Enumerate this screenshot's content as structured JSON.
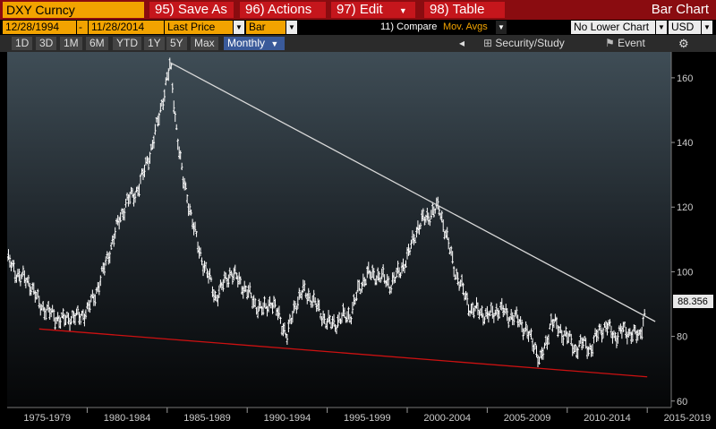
{
  "header": {
    "ticker": "DXY Curncy",
    "actions": [
      {
        "num": "95)",
        "label": "Save As",
        "dropdown": false
      },
      {
        "num": "96)",
        "label": "Actions",
        "dropdown": true
      },
      {
        "num": "97)",
        "label": "Edit",
        "dropdown": true
      },
      {
        "num": "98)",
        "label": "Table",
        "dropdown": false
      }
    ],
    "chart_kind": "Bar Chart"
  },
  "settings": {
    "start_date": "12/28/1994",
    "separator": "-",
    "end_date": "11/28/2014",
    "field": "Last Price",
    "style": "Bar",
    "compare": "11) Compare",
    "mov_avgs": "Mov. Avgs",
    "lower_chart": "No Lower Chart",
    "currency": "USD"
  },
  "periods": [
    "1D",
    "3D",
    "1M",
    "6M",
    "YTD",
    "1Y",
    "5Y",
    "Max"
  ],
  "frequency": "Monthly",
  "tools": {
    "security_study": "Security/Study",
    "event": "Event"
  },
  "colors": {
    "accent_orange": "#f2a300",
    "header_red": "#8a0c10",
    "button_red": "#c5161c",
    "price_bars": "#ffffff",
    "resistance_line": "#d8d8d8",
    "support_line": "#cc1111"
  },
  "chart_data": {
    "type": "bar",
    "title": "",
    "xlabel": "",
    "ylabel": "",
    "frequency": "Monthly",
    "xlim": [
      1975.0,
      2016.5
    ],
    "ylim": [
      58,
      168
    ],
    "y_ticks": [
      60,
      80,
      100,
      120,
      140,
      160
    ],
    "x_tick_labels": [
      "1975-1979",
      "1980-1984",
      "1985-1989",
      "1990-1994",
      "1995-1999",
      "2000-2004",
      "2005-2009",
      "2010-2014",
      "2015-2019"
    ],
    "x_tick_positions": [
      1977.5,
      1982.5,
      1987.5,
      1992.5,
      1997.5,
      2002.5,
      2007.5,
      2012.5,
      2017.5
    ],
    "last_value": "88.356",
    "series": [
      {
        "x": [
          1975.0,
          1975.5,
          1976.0,
          1976.5,
          1977.0,
          1977.5,
          1978.0,
          1978.5,
          1979.0,
          1979.5,
          1980.0,
          1980.5,
          1981.0,
          1981.5,
          1982.0,
          1982.5,
          1983.0,
          1983.5,
          1984.0,
          1984.5,
          1985.0,
          1985.2,
          1985.5,
          1986.0,
          1986.5,
          1987.0,
          1987.5,
          1988.0,
          1988.5,
          1989.0,
          1989.5,
          1990.0,
          1990.5,
          1991.0,
          1991.5,
          1992.0,
          1992.5,
          1993.0,
          1993.5,
          1994.0,
          1994.5,
          1995.0,
          1995.5,
          1996.0,
          1996.5,
          1997.0,
          1997.5,
          1998.0,
          1998.5,
          1999.0,
          1999.5,
          2000.0,
          2000.5,
          2001.0,
          2001.5,
          2002.0,
          2002.5,
          2003.0,
          2003.5,
          2004.0,
          2004.5,
          2005.0,
          2005.5,
          2006.0,
          2006.5,
          2007.0,
          2007.5,
          2008.0,
          2008.3,
          2008.7,
          2009.0,
          2009.5,
          2010.0,
          2010.5,
          2011.0,
          2011.5,
          2012.0,
          2012.5,
          2013.0,
          2013.5,
          2014.0,
          2014.5,
          2014.9
        ],
        "values": [
          104,
          100,
          98,
          96,
          90,
          88,
          86,
          85,
          86,
          86,
          88,
          93,
          100,
          108,
          116,
          122,
          124,
          130,
          138,
          148,
          160,
          164,
          148,
          128,
          118,
          106,
          100,
          92,
          96,
          100,
          97,
          94,
          90,
          88,
          91,
          86,
          80,
          90,
          94,
          92,
          88,
          84,
          84,
          86,
          87,
          95,
          99,
          99,
          98,
          96,
          100,
          104,
          112,
          116,
          118,
          120,
          110,
          100,
          94,
          88,
          88,
          86,
          88,
          88,
          86,
          85,
          81,
          77,
          72,
          78,
          85,
          82,
          80,
          76,
          78,
          76,
          82,
          83,
          80,
          82,
          81,
          80,
          88
        ]
      }
    ],
    "trendlines": [
      {
        "name": "resistance",
        "x": [
          1985.2,
          2015.5
        ],
        "y": [
          164.7,
          84.6
        ],
        "color": "#d8d8d8"
      },
      {
        "name": "support",
        "x": [
          1977.0,
          2015.0
        ],
        "y": [
          82.3,
          67.5
        ],
        "color": "#cc1111"
      }
    ]
  }
}
